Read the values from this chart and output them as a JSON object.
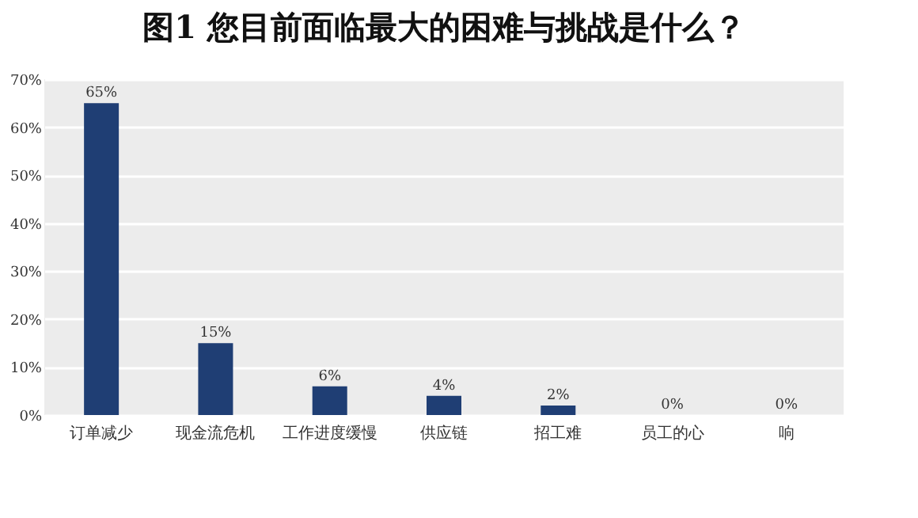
{
  "chart_data": {
    "type": "bar",
    "title": "图1  您目前面临最大的困难与挑战是什么？",
    "categories": [
      "订单减少",
      "现金流危机",
      "工作进度缓慢",
      "供应链",
      "招工难",
      "员工的心",
      "响"
    ],
    "values": [
      65,
      15,
      6,
      4,
      2,
      0,
      0
    ],
    "value_labels": [
      "65%",
      "15%",
      "6%",
      "4%",
      "2%",
      "0%",
      "0%"
    ],
    "color": "#1f3e74",
    "ylim": [
      0,
      70
    ],
    "yticks": [
      {
        "value": 0,
        "label": "0%"
      },
      {
        "value": 10,
        "label": "10%"
      },
      {
        "value": 20,
        "label": "20%"
      },
      {
        "value": 30,
        "label": "30%"
      },
      {
        "value": 40,
        "label": "40%"
      },
      {
        "value": 50,
        "label": "50%"
      },
      {
        "value": 60,
        "label": "60%"
      },
      {
        "value": 70,
        "label": "70%"
      }
    ],
    "grid": "y"
  }
}
